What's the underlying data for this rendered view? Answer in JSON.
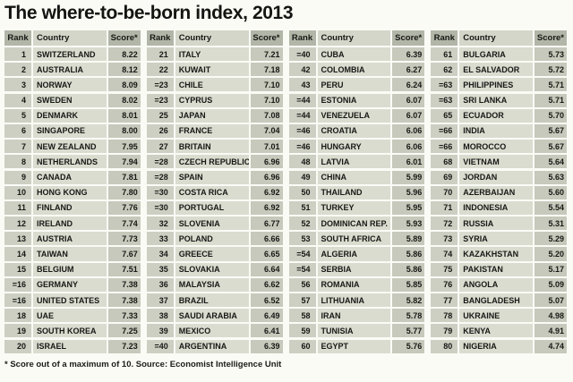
{
  "title": "The where-to-be-born index, 2013",
  "headers": {
    "rank": "Rank",
    "country": "Country",
    "score": "Score*"
  },
  "footnote": "* Score out of a maximum of 10. Source: Economist Intelligence Unit",
  "colors": {
    "header_dark": "#b2b6a8",
    "header_light": "#d3d6c9",
    "rank_cell_bg": "#cccfc2",
    "country_cell_bg": "#d9dccf",
    "score_cell_bg": "#c6c9bb",
    "page_bg": "#fbfbf6",
    "text": "#181815"
  },
  "chart_data": {
    "type": "table",
    "title": "The where-to-be-born index, 2013",
    "columns": [
      "Rank",
      "Country",
      "Score*"
    ],
    "note": "* Score out of a maximum of 10. Source: Economist Intelligence Unit",
    "tables": [
      [
        {
          "rank": "1",
          "country": "SWITZERLAND",
          "score": "8.22"
        },
        {
          "rank": "2",
          "country": "AUSTRALIA",
          "score": "8.12"
        },
        {
          "rank": "3",
          "country": "NORWAY",
          "score": "8.09"
        },
        {
          "rank": "4",
          "country": "SWEDEN",
          "score": "8.02"
        },
        {
          "rank": "5",
          "country": "DENMARK",
          "score": "8.01"
        },
        {
          "rank": "6",
          "country": "SINGAPORE",
          "score": "8.00"
        },
        {
          "rank": "7",
          "country": "NEW ZEALAND",
          "score": "7.95"
        },
        {
          "rank": "8",
          "country": "NETHERLANDS",
          "score": "7.94"
        },
        {
          "rank": "9",
          "country": "CANADA",
          "score": "7.81"
        },
        {
          "rank": "10",
          "country": "HONG KONG",
          "score": "7.80"
        },
        {
          "rank": "11",
          "country": "FINLAND",
          "score": "7.76"
        },
        {
          "rank": "12",
          "country": "IRELAND",
          "score": "7.74"
        },
        {
          "rank": "13",
          "country": "AUSTRIA",
          "score": "7.73"
        },
        {
          "rank": "14",
          "country": "TAIWAN",
          "score": "7.67"
        },
        {
          "rank": "15",
          "country": "BELGIUM",
          "score": "7.51"
        },
        {
          "rank": "=16",
          "country": "GERMANY",
          "score": "7.38"
        },
        {
          "rank": "=16",
          "country": "UNITED STATES",
          "score": "7.38"
        },
        {
          "rank": "18",
          "country": "UAE",
          "score": "7.33"
        },
        {
          "rank": "19",
          "country": "SOUTH KOREA",
          "score": "7.25"
        },
        {
          "rank": "20",
          "country": "ISRAEL",
          "score": "7.23"
        }
      ],
      [
        {
          "rank": "21",
          "country": "ITALY",
          "score": "7.21"
        },
        {
          "rank": "22",
          "country": "KUWAIT",
          "score": "7.18"
        },
        {
          "rank": "=23",
          "country": "CHILE",
          "score": "7.10"
        },
        {
          "rank": "=23",
          "country": "CYPRUS",
          "score": "7.10"
        },
        {
          "rank": "25",
          "country": "JAPAN",
          "score": "7.08"
        },
        {
          "rank": "26",
          "country": "FRANCE",
          "score": "7.04"
        },
        {
          "rank": "27",
          "country": "BRITAIN",
          "score": "7.01"
        },
        {
          "rank": "=28",
          "country": "CZECH REPUBLIC",
          "score": "6.96"
        },
        {
          "rank": "=28",
          "country": "SPAIN",
          "score": "6.96"
        },
        {
          "rank": "=30",
          "country": "COSTA RICA",
          "score": "6.92"
        },
        {
          "rank": "=30",
          "country": "PORTUGAL",
          "score": "6.92"
        },
        {
          "rank": "32",
          "country": "SLOVENIA",
          "score": "6.77"
        },
        {
          "rank": "33",
          "country": "POLAND",
          "score": "6.66"
        },
        {
          "rank": "34",
          "country": "GREECE",
          "score": "6.65"
        },
        {
          "rank": "35",
          "country": "SLOVAKIA",
          "score": "6.64"
        },
        {
          "rank": "36",
          "country": "MALAYSIA",
          "score": "6.62"
        },
        {
          "rank": "37",
          "country": "BRAZIL",
          "score": "6.52"
        },
        {
          "rank": "38",
          "country": "SAUDI ARABIA",
          "score": "6.49"
        },
        {
          "rank": "39",
          "country": "MEXICO",
          "score": "6.41"
        },
        {
          "rank": "=40",
          "country": "ARGENTINA",
          "score": "6.39"
        }
      ],
      [
        {
          "rank": "=40",
          "country": "CUBA",
          "score": "6.39"
        },
        {
          "rank": "42",
          "country": "COLOMBIA",
          "score": "6.27"
        },
        {
          "rank": "43",
          "country": "PERU",
          "score": "6.24"
        },
        {
          "rank": "=44",
          "country": "ESTONIA",
          "score": "6.07"
        },
        {
          "rank": "=44",
          "country": "VENEZUELA",
          "score": "6.07"
        },
        {
          "rank": "=46",
          "country": "CROATIA",
          "score": "6.06"
        },
        {
          "rank": "=46",
          "country": "HUNGARY",
          "score": "6.06"
        },
        {
          "rank": "48",
          "country": "LATVIA",
          "score": "6.01"
        },
        {
          "rank": "49",
          "country": "CHINA",
          "score": "5.99"
        },
        {
          "rank": "50",
          "country": "THAILAND",
          "score": "5.96"
        },
        {
          "rank": "51",
          "country": "TURKEY",
          "score": "5.95"
        },
        {
          "rank": "52",
          "country": "DOMINICAN REP.",
          "score": "5.93"
        },
        {
          "rank": "53",
          "country": "SOUTH AFRICA",
          "score": "5.89"
        },
        {
          "rank": "=54",
          "country": "ALGERIA",
          "score": "5.86"
        },
        {
          "rank": "=54",
          "country": "SERBIA",
          "score": "5.86"
        },
        {
          "rank": "56",
          "country": "ROMANIA",
          "score": "5.85"
        },
        {
          "rank": "57",
          "country": "LITHUANIA",
          "score": "5.82"
        },
        {
          "rank": "58",
          "country": "IRAN",
          "score": "5.78"
        },
        {
          "rank": "59",
          "country": "TUNISIA",
          "score": "5.77"
        },
        {
          "rank": "60",
          "country": "EGYPT",
          "score": "5.76"
        }
      ],
      [
        {
          "rank": "61",
          "country": "BULGARIA",
          "score": "5.73"
        },
        {
          "rank": "62",
          "country": "EL SALVADOR",
          "score": "5.72"
        },
        {
          "rank": "=63",
          "country": "PHILIPPINES",
          "score": "5.71"
        },
        {
          "rank": "=63",
          "country": "SRI LANKA",
          "score": "5.71"
        },
        {
          "rank": "65",
          "country": "ECUADOR",
          "score": "5.70"
        },
        {
          "rank": "=66",
          "country": "INDIA",
          "score": "5.67"
        },
        {
          "rank": "=66",
          "country": "MOROCCO",
          "score": "5.67"
        },
        {
          "rank": "68",
          "country": "VIETNAM",
          "score": "5.64"
        },
        {
          "rank": "69",
          "country": "JORDAN",
          "score": "5.63"
        },
        {
          "rank": "70",
          "country": "AZERBAIJAN",
          "score": "5.60"
        },
        {
          "rank": "71",
          "country": "INDONESIA",
          "score": "5.54"
        },
        {
          "rank": "72",
          "country": "RUSSIA",
          "score": "5.31"
        },
        {
          "rank": "73",
          "country": "SYRIA",
          "score": "5.29"
        },
        {
          "rank": "74",
          "country": "KAZAKHSTAN",
          "score": "5.20"
        },
        {
          "rank": "75",
          "country": "PAKISTAN",
          "score": "5.17"
        },
        {
          "rank": "76",
          "country": "ANGOLA",
          "score": "5.09"
        },
        {
          "rank": "77",
          "country": "BANGLADESH",
          "score": "5.07"
        },
        {
          "rank": "78",
          "country": "UKRAINE",
          "score": "4.98"
        },
        {
          "rank": "79",
          "country": "KENYA",
          "score": "4.91"
        },
        {
          "rank": "80",
          "country": "NIGERIA",
          "score": "4.74"
        }
      ]
    ]
  }
}
